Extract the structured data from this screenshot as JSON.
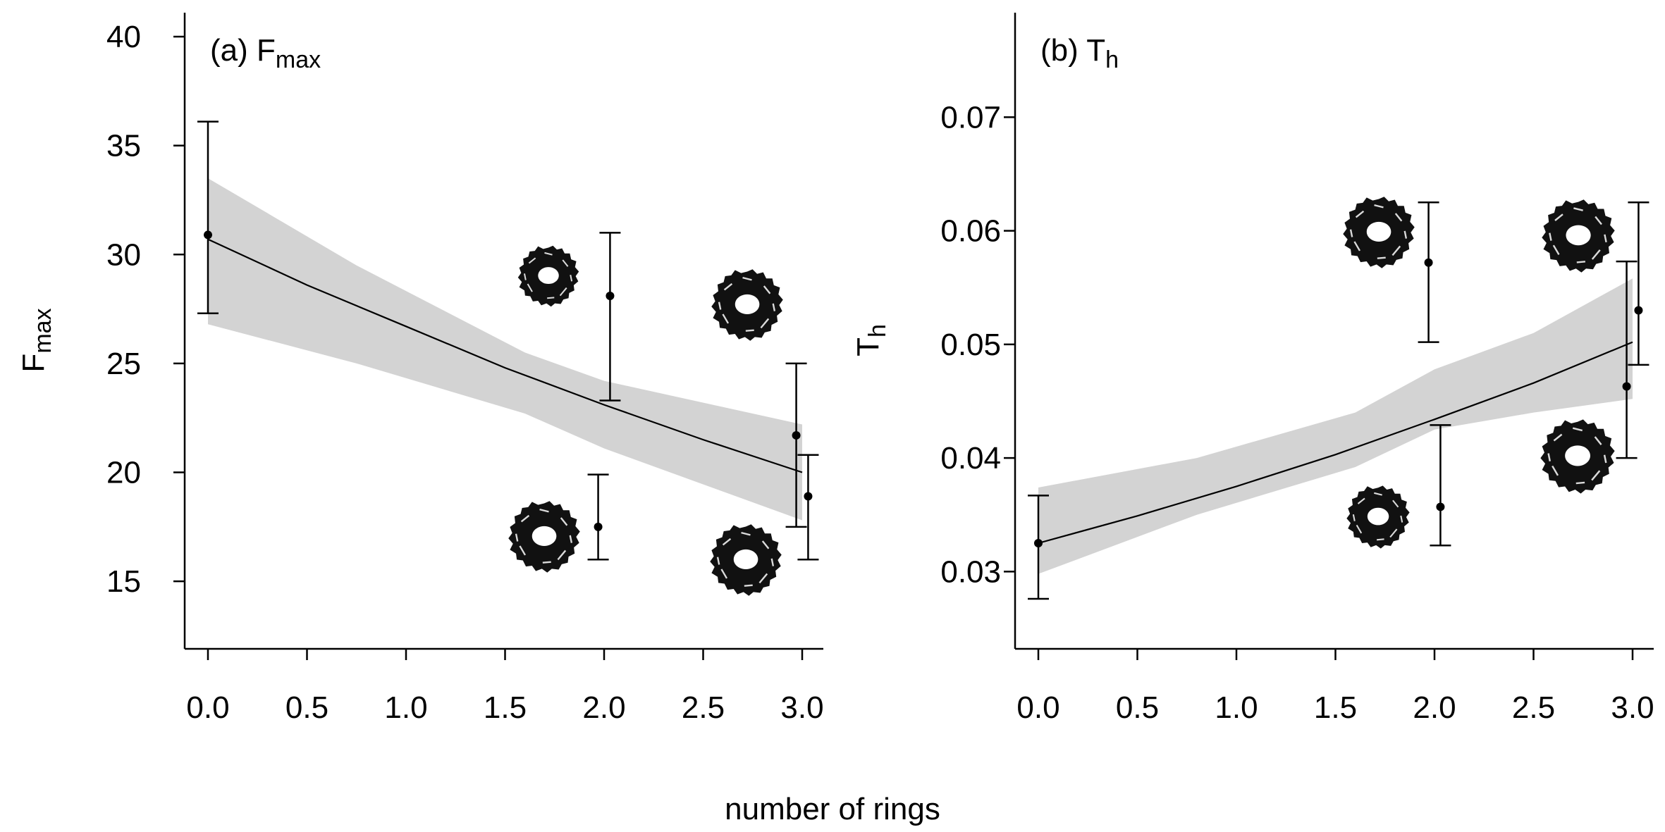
{
  "figure": {
    "xlabel": "number of rings"
  },
  "chart_data": [
    {
      "type": "line",
      "panel_label": "(a)",
      "title_main": "F",
      "title_sub": "max",
      "ylabel_main": "F",
      "ylabel_sub": "max",
      "xlim": [
        -0.12,
        3.15
      ],
      "ylim": [
        11.9,
        41.1
      ],
      "xticks": [
        "0.0",
        "0.5",
        "1.0",
        "1.5",
        "2.0",
        "2.5",
        "3.0"
      ],
      "yticks": [
        "15",
        "20",
        "25",
        "30",
        "35",
        "40"
      ],
      "fit_line": {
        "x": [
          0,
          0.5,
          1.0,
          1.5,
          2.0,
          2.5,
          3.0
        ],
        "y": [
          30.7,
          28.6,
          26.7,
          24.8,
          23.1,
          21.5,
          20.0
        ]
      },
      "confidence_band": {
        "x": [
          0,
          0.75,
          1.6,
          2.0,
          3.0
        ],
        "upper": [
          33.5,
          29.5,
          25.5,
          24.2,
          22.2
        ],
        "lower": [
          26.8,
          25.0,
          22.7,
          21.1,
          17.8
        ]
      },
      "points": [
        {
          "x": 0.0,
          "y": 30.9,
          "lower": 27.3,
          "upper": 36.1
        },
        {
          "x": 2.03,
          "y": 28.1,
          "lower": 23.3,
          "upper": 31.0
        },
        {
          "x": 1.97,
          "y": 17.5,
          "lower": 16.0,
          "upper": 19.9
        },
        {
          "x": 2.97,
          "y": 21.7,
          "lower": 17.5,
          "upper": 25.0
        },
        {
          "x": 3.03,
          "y": 18.9,
          "lower": 16.0,
          "upper": 20.8
        }
      ]
    },
    {
      "type": "line",
      "panel_label": "(b)",
      "title_main": "T",
      "title_sub": "h",
      "ylabel_main": "T",
      "ylabel_sub": "h",
      "xlim": [
        -0.12,
        3.15
      ],
      "ylim": [
        0.0232,
        0.0792
      ],
      "xticks": [
        "0.0",
        "0.5",
        "1.0",
        "1.5",
        "2.0",
        "2.5",
        "3.0"
      ],
      "yticks": [
        "0.03",
        "0.04",
        "0.05",
        "0.06",
        "0.07"
      ],
      "fit_line": {
        "x": [
          0,
          0.5,
          1.0,
          1.5,
          2.0,
          2.5,
          3.0
        ],
        "y": [
          0.0325,
          0.0349,
          0.0375,
          0.0403,
          0.0434,
          0.0466,
          0.0502
        ]
      },
      "confidence_band": {
        "x": [
          0,
          0.8,
          1.6,
          2.0,
          2.5,
          3.0
        ],
        "upper": [
          0.0374,
          0.04,
          0.044,
          0.0478,
          0.051,
          0.0558
        ],
        "lower": [
          0.0298,
          0.035,
          0.0392,
          0.0425,
          0.044,
          0.0452
        ]
      },
      "points": [
        {
          "x": 0.0,
          "y": 0.0325,
          "lower": 0.0276,
          "upper": 0.0367
        },
        {
          "x": 1.97,
          "y": 0.0572,
          "lower": 0.0502,
          "upper": 0.0625
        },
        {
          "x": 2.03,
          "y": 0.0357,
          "lower": 0.0323,
          "upper": 0.0429
        },
        {
          "x": 2.97,
          "y": 0.0463,
          "lower": 0.04,
          "upper": 0.0573
        },
        {
          "x": 3.03,
          "y": 0.053,
          "lower": 0.0482,
          "upper": 0.0625
        }
      ]
    }
  ],
  "icons": [
    "ring-cluster-icon"
  ]
}
